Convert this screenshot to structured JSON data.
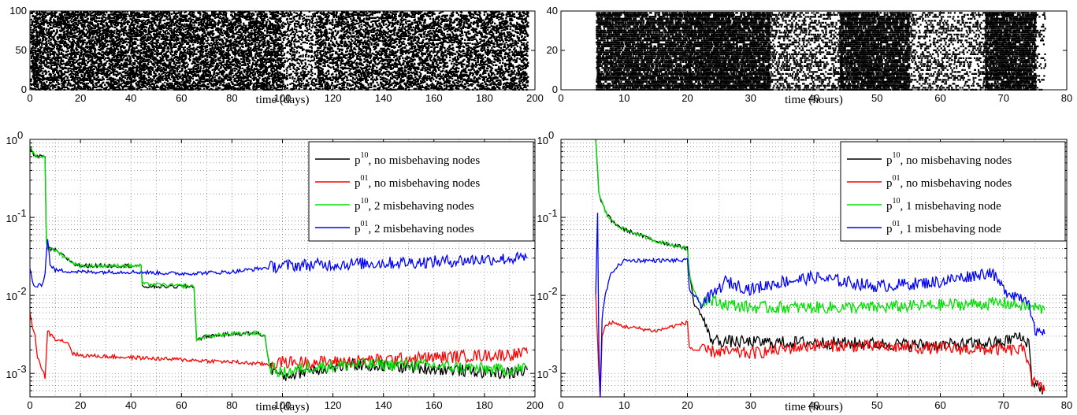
{
  "chart_data": [
    {
      "id": "top-left",
      "type": "scatter",
      "xlabel": "time (days)",
      "xlim": [
        0,
        200
      ],
      "ylim": [
        0,
        100
      ],
      "xticks": [
        "0",
        "20",
        "40",
        "60",
        "80",
        "100",
        "120",
        "140",
        "160",
        "180",
        "200"
      ],
      "yticks": [
        "0",
        "50",
        "100"
      ],
      "grid": false,
      "points_description": "dense node-contact raster, nodes 0-100 over days 0-197",
      "density_segments": [
        [
          0,
          100,
          0.9
        ],
        [
          100,
          113,
          0.25
        ],
        [
          113,
          197,
          0.85
        ]
      ]
    },
    {
      "id": "top-right",
      "type": "scatter",
      "xlabel": "time (hours)",
      "xlim": [
        0,
        80
      ],
      "ylim": [
        0,
        40
      ],
      "xticks": [
        "0",
        "10",
        "20",
        "30",
        "40",
        "50",
        "60",
        "70",
        "80"
      ],
      "yticks": [
        "0",
        "20",
        "40"
      ],
      "grid": false,
      "density_segments": [
        [
          5.5,
          20,
          0.8
        ],
        [
          20,
          33,
          0.95
        ],
        [
          33,
          44,
          0.25
        ],
        [
          44,
          55,
          0.9
        ],
        [
          55,
          67,
          0.2
        ],
        [
          67,
          75,
          0.95
        ],
        [
          75,
          76.5,
          0.1
        ]
      ]
    },
    {
      "id": "bottom-left",
      "type": "line",
      "xlabel": "time (days)",
      "xlim": [
        0,
        200
      ],
      "yscale": "log",
      "ylim": [
        0.0005,
        1
      ],
      "xticks": [
        "0",
        "20",
        "40",
        "60",
        "80",
        "100",
        "120",
        "140",
        "160",
        "180",
        "200"
      ],
      "ytick_base": "10",
      "ytick_exps": [
        "0",
        "-1",
        "-2",
        "-3"
      ],
      "grid": true,
      "legend_placement": "top-right",
      "series": [
        {
          "sup": "10",
          "rest": ", no misbehaving nodes",
          "color": "#000000",
          "x": [
            0,
            1,
            2,
            3,
            4,
            5,
            6,
            6.5,
            7,
            10,
            18,
            20,
            44,
            44.5,
            65,
            66,
            70,
            80,
            90,
            93,
            95,
            100,
            110,
            130,
            150,
            170,
            190,
            197
          ],
          "y": [
            0.8,
            0.7,
            0.6,
            0.6,
            0.6,
            0.6,
            0.6,
            0.05,
            0.04,
            0.038,
            0.025,
            0.024,
            0.024,
            0.013,
            0.013,
            0.0027,
            0.003,
            0.0032,
            0.0033,
            0.003,
            0.0012,
            0.0009,
            0.0011,
            0.0013,
            0.0012,
            0.0011,
            0.001,
            0.0011
          ]
        },
        {
          "sup": "01",
          "rest": ", no misbehaving nodes",
          "color": "#ff0000",
          "x": [
            0,
            1,
            2,
            3,
            4,
            5,
            6,
            7,
            8,
            10,
            15,
            17,
            20,
            40,
            60,
            80,
            95,
            100,
            120,
            140,
            160,
            180,
            197
          ],
          "y": [
            0.006,
            0.004,
            0.003,
            0.0016,
            0.0013,
            0.0011,
            0.0009,
            0.0035,
            0.0032,
            0.0028,
            0.0025,
            0.0018,
            0.0017,
            0.0016,
            0.0015,
            0.0014,
            0.0013,
            0.0014,
            0.0014,
            0.0015,
            0.0016,
            0.0017,
            0.0018
          ]
        },
        {
          "sup": "10",
          "rest": ", 2 misbehaving nodes",
          "color": "#00e000",
          "x": [
            0,
            1,
            2,
            3,
            4,
            5,
            6,
            6.5,
            7,
            10,
            18,
            20,
            44,
            44.5,
            65,
            66,
            70,
            80,
            90,
            93,
            95,
            100,
            110,
            130,
            150,
            170,
            190,
            197
          ],
          "y": [
            0.8,
            0.7,
            0.6,
            0.6,
            0.6,
            0.6,
            0.6,
            0.05,
            0.04,
            0.038,
            0.025,
            0.024,
            0.024,
            0.014,
            0.013,
            0.0027,
            0.003,
            0.0032,
            0.0033,
            0.003,
            0.0012,
            0.001,
            0.0012,
            0.0013,
            0.0013,
            0.0012,
            0.0011,
            0.0012
          ]
        },
        {
          "sup": "01",
          "rest": ", 2 misbehaving nodes",
          "color": "#0000ff",
          "x": [
            0,
            1,
            2,
            3,
            5,
            6,
            7,
            8,
            10,
            20,
            40,
            60,
            80,
            100,
            120,
            140,
            160,
            180,
            197
          ],
          "y": [
            0.022,
            0.015,
            0.013,
            0.013,
            0.014,
            0.02,
            0.055,
            0.025,
            0.021,
            0.02,
            0.02,
            0.019,
            0.02,
            0.024,
            0.025,
            0.026,
            0.027,
            0.029,
            0.03
          ]
        }
      ]
    },
    {
      "id": "bottom-right",
      "type": "line",
      "xlabel": "time (hours)",
      "xlim": [
        0,
        80
      ],
      "yscale": "log",
      "ylim": [
        0.0005,
        1
      ],
      "xticks": [
        "0",
        "10",
        "20",
        "30",
        "40",
        "50",
        "60",
        "70",
        "80"
      ],
      "ytick_base": "10",
      "ytick_exps": [
        "0",
        "-1",
        "-2",
        "-3"
      ],
      "grid": true,
      "legend_placement": "top-right",
      "series": [
        {
          "sup": "10",
          "rest": ", no misbehaving nodes",
          "color": "#000000",
          "x": [
            5.5,
            6,
            7,
            8,
            10,
            15,
            20,
            20.3,
            21,
            22,
            23,
            23.5,
            25,
            30,
            40,
            50,
            60,
            70,
            72,
            74,
            74.5,
            76.5
          ],
          "y": [
            1,
            0.2,
            0.12,
            0.09,
            0.07,
            0.05,
            0.04,
            0.02,
            0.008,
            0.006,
            0.004,
            0.0028,
            0.0026,
            0.0025,
            0.0025,
            0.0024,
            0.0023,
            0.0025,
            0.003,
            0.0025,
            0.0008,
            0.0006
          ]
        },
        {
          "sup": "01",
          "rest": ", no misbehaving nodes",
          "color": "#ff0000",
          "x": [
            5.5,
            6,
            6.2,
            6.5,
            7,
            8,
            10,
            15,
            20,
            20.3,
            21,
            25,
            30,
            40,
            50,
            60,
            70,
            73,
            74,
            74.5,
            76.5
          ],
          "y": [
            0.01,
            0.001,
            0.0005,
            0.003,
            0.004,
            0.0045,
            0.004,
            0.0035,
            0.0045,
            0.0022,
            0.002,
            0.0019,
            0.0018,
            0.0023,
            0.0022,
            0.0021,
            0.002,
            0.002,
            0.0015,
            0.0008,
            0.0006
          ]
        },
        {
          "sup": "10",
          "rest": ", 1 misbehaving node",
          "color": "#00e000",
          "x": [
            5.5,
            6,
            7,
            8,
            10,
            15,
            20,
            20.3,
            21,
            22,
            23,
            25,
            30,
            40,
            50,
            60,
            70,
            75,
            76.5
          ],
          "y": [
            1,
            0.2,
            0.12,
            0.09,
            0.07,
            0.05,
            0.04,
            0.018,
            0.012,
            0.008,
            0.009,
            0.008,
            0.007,
            0.007,
            0.007,
            0.0075,
            0.008,
            0.007,
            0.0065
          ]
        },
        {
          "sup": "01",
          "rest": ", 1 misbehaving node",
          "color": "#0000ff",
          "x": [
            5.5,
            5.8,
            6,
            6.2,
            6.5,
            7,
            8,
            10,
            15,
            20,
            20.3,
            22,
            24,
            26,
            30,
            35,
            40,
            45,
            50,
            55,
            60,
            65,
            68,
            70,
            72,
            74,
            75,
            76.5
          ],
          "y": [
            0.01,
            0.12,
            0.002,
            0.0005,
            0.005,
            0.01,
            0.02,
            0.028,
            0.028,
            0.028,
            0.012,
            0.008,
            0.01,
            0.015,
            0.012,
            0.015,
            0.017,
            0.015,
            0.013,
            0.014,
            0.015,
            0.018,
            0.02,
            0.012,
            0.01,
            0.009,
            0.0032,
            0.0032
          ]
        }
      ]
    }
  ]
}
